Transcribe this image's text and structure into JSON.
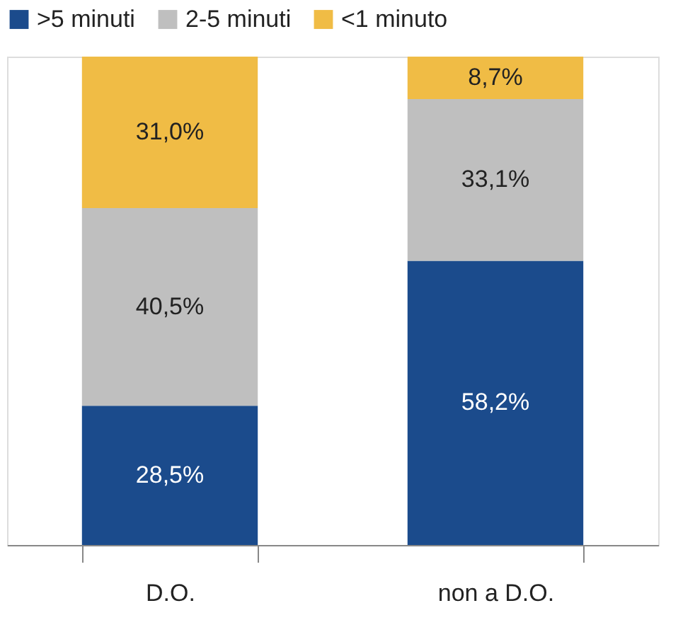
{
  "chart_data": {
    "type": "bar",
    "stacked": true,
    "categories": [
      "D.O.",
      "non a D.O."
    ],
    "series": [
      {
        "name": ">5 minuti",
        "color": "#1b4b8c",
        "values": [
          28.5,
          58.2
        ],
        "value_labels": [
          "28,5%",
          "58,2%"
        ]
      },
      {
        "name": "2-5 minuti",
        "color": "#bfbfbf",
        "values": [
          40.5,
          33.1
        ],
        "value_labels": [
          "40,5%",
          "33,1%"
        ]
      },
      {
        "name": "<1 minuto",
        "color": "#f0bc45",
        "values": [
          31.0,
          8.7
        ],
        "value_labels": [
          "31,0%",
          "8,7%"
        ]
      }
    ],
    "legend": "top",
    "grid": false
  }
}
